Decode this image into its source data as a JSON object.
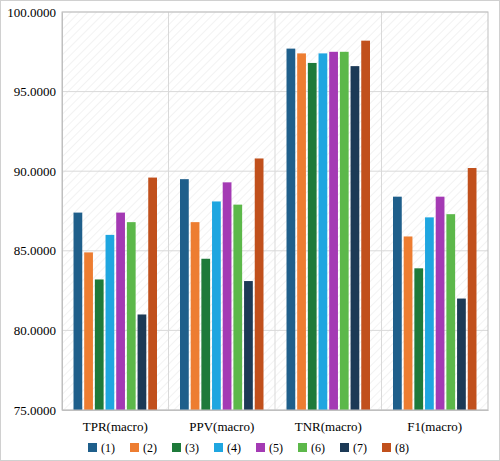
{
  "chart_data": {
    "type": "bar",
    "categories": [
      "TPR(macro)",
      "PPV(macro)",
      "TNR(macro)",
      "F1(macro)"
    ],
    "series": [
      {
        "name": "(1)",
        "color": "#1f5f8b",
        "values": [
          87.4,
          89.5,
          97.7,
          88.4
        ]
      },
      {
        "name": "(2)",
        "color": "#ed7d31",
        "values": [
          84.9,
          86.8,
          97.4,
          85.9
        ]
      },
      {
        "name": "(3)",
        "color": "#1e7a3a",
        "values": [
          83.2,
          84.5,
          96.8,
          83.9
        ]
      },
      {
        "name": "(4)",
        "color": "#1fa6e0",
        "values": [
          86.0,
          88.1,
          97.4,
          87.1
        ]
      },
      {
        "name": "(5)",
        "color": "#a43ab4",
        "values": [
          87.4,
          89.3,
          97.5,
          88.4
        ]
      },
      {
        "name": "(6)",
        "color": "#5cb84a",
        "values": [
          86.8,
          87.9,
          97.5,
          87.3
        ]
      },
      {
        "name": "(7)",
        "color": "#1c3a56",
        "values": [
          81.0,
          83.1,
          96.6,
          82.0
        ]
      },
      {
        "name": "(8)",
        "color": "#c1501c",
        "values": [
          89.6,
          90.8,
          98.2,
          90.2
        ]
      }
    ],
    "ylim": [
      75,
      100
    ],
    "yticks": [
      {
        "value": 75,
        "label": "75.0000"
      },
      {
        "value": 80,
        "label": "80.0000"
      },
      {
        "value": 85,
        "label": "85.0000"
      },
      {
        "value": 90,
        "label": "90.0000"
      },
      {
        "value": 95,
        "label": "95.0000"
      },
      {
        "value": 100,
        "label": "100.0000"
      }
    ],
    "grid": true,
    "legend": "bottom"
  }
}
